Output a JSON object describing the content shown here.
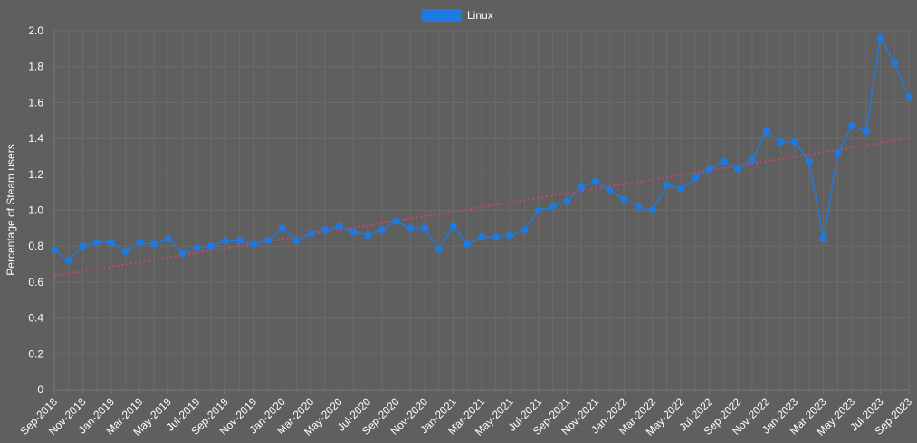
{
  "colors": {
    "background": "#5f5f5f",
    "grid": "#6b6b6b",
    "axis": "#7a7a7a",
    "series": "#1f7ae0",
    "trend": "#d0416e",
    "text": "#ffffff"
  },
  "chart_data": {
    "type": "line",
    "ylabel": "Percentage of Steam users",
    "ylim": [
      0,
      2.0
    ],
    "y_ticks": [
      "0",
      "0.2",
      "0.4",
      "0.6",
      "0.8",
      "1.0",
      "1.2",
      "1.4",
      "1.6",
      "1.8",
      "2.0"
    ],
    "grid": true,
    "legend_position": "top-center",
    "x_labels": [
      "Sep-2018",
      "Nov-2018",
      "Jan-2019",
      "Mar-2019",
      "May-2019",
      "Jul-2019",
      "Sep-2019",
      "Nov-2019",
      "Jan-2020",
      "Mar-2020",
      "May-2020",
      "Jul-2020",
      "Sep-2020",
      "Nov-2020",
      "Jan-2021",
      "Mar-2021",
      "May-2021",
      "Jul-2021",
      "Sep-2021",
      "Nov-2021",
      "Jan-2022",
      "Mar-2022",
      "May-2022",
      "Jul-2022",
      "Sep-2022",
      "Nov-2022",
      "Jan-2023",
      "Mar-2023",
      "May-2023",
      "Jul-2023",
      "Sep-2023"
    ],
    "x": [
      "2018-09",
      "2018-10",
      "2018-11",
      "2018-12",
      "2019-01",
      "2019-02",
      "2019-03",
      "2019-04",
      "2019-05",
      "2019-06",
      "2019-07",
      "2019-08",
      "2019-09",
      "2019-10",
      "2019-11",
      "2019-12",
      "2020-01",
      "2020-02",
      "2020-03",
      "2020-04",
      "2020-05",
      "2020-06",
      "2020-07",
      "2020-08",
      "2020-09",
      "2020-10",
      "2020-11",
      "2020-12",
      "2021-01",
      "2021-02",
      "2021-03",
      "2021-04",
      "2021-05",
      "2021-06",
      "2021-07",
      "2021-08",
      "2021-09",
      "2021-10",
      "2021-11",
      "2021-12",
      "2022-01",
      "2022-02",
      "2022-03",
      "2022-04",
      "2022-05",
      "2022-06",
      "2022-07",
      "2022-08",
      "2022-09",
      "2022-10",
      "2022-11",
      "2022-12",
      "2023-01",
      "2023-02",
      "2023-03",
      "2023-04",
      "2023-05",
      "2023-06",
      "2023-07",
      "2023-08",
      "2023-09"
    ],
    "series": [
      {
        "name": "Linux",
        "values": [
          0.78,
          0.72,
          0.8,
          0.82,
          0.82,
          0.77,
          0.82,
          0.81,
          0.84,
          0.76,
          0.79,
          0.8,
          0.83,
          0.83,
          0.81,
          0.83,
          0.9,
          0.83,
          0.87,
          0.89,
          0.91,
          0.88,
          0.86,
          0.89,
          0.94,
          0.9,
          0.9,
          0.78,
          0.91,
          0.81,
          0.85,
          0.85,
          0.86,
          0.89,
          1.0,
          1.02,
          1.05,
          1.13,
          1.16,
          1.11,
          1.06,
          1.02,
          1.0,
          1.14,
          1.12,
          1.18,
          1.23,
          1.27,
          1.23,
          1.28,
          1.44,
          1.38,
          1.38,
          1.27,
          0.84,
          1.32,
          1.47,
          1.44,
          1.96,
          1.82,
          1.63
        ]
      }
    ],
    "trendline": {
      "start": [
        "2018-09",
        0.635
      ],
      "end": [
        "2023-09",
        1.4
      ]
    }
  }
}
